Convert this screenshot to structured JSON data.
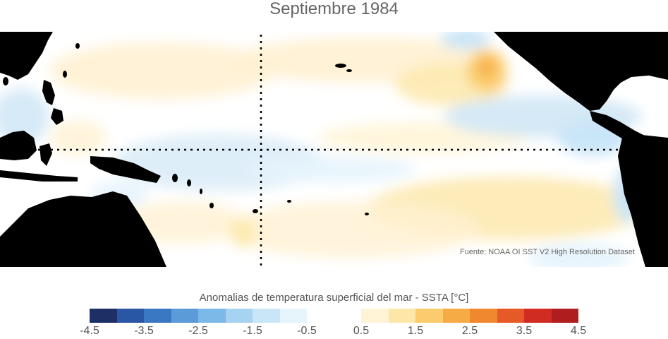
{
  "title": "Septiembre 1984",
  "source": "Fuente: NOAA OI SST V2 High Resolution Dataset",
  "colorbar": {
    "title": "Anomalias de temperatura superficial del mar - SSTA  [°C]",
    "ticks": [
      "-4.5",
      "-3.5",
      "-2.5",
      "-1.5",
      "-0.5",
      "0.5",
      "1.5",
      "2.5",
      "3.5",
      "4.5"
    ],
    "colors": [
      "#1e2f66",
      "#2a56a6",
      "#3b78c4",
      "#5a9bd8",
      "#7cb8e8",
      "#a6d3f2",
      "#c9e5f8",
      "#e6f4fc",
      "#ffffff",
      "#ffffff",
      "#fff4d6",
      "#fde7a8",
      "#fbcc6d",
      "#f7ab44",
      "#f08830",
      "#e55a26",
      "#d02c22",
      "#b01d1f"
    ]
  },
  "map": {
    "land_color": "#000000",
    "ocean_color": "#ffffff",
    "reference_lines": [
      "equator",
      "dateline"
    ]
  }
}
